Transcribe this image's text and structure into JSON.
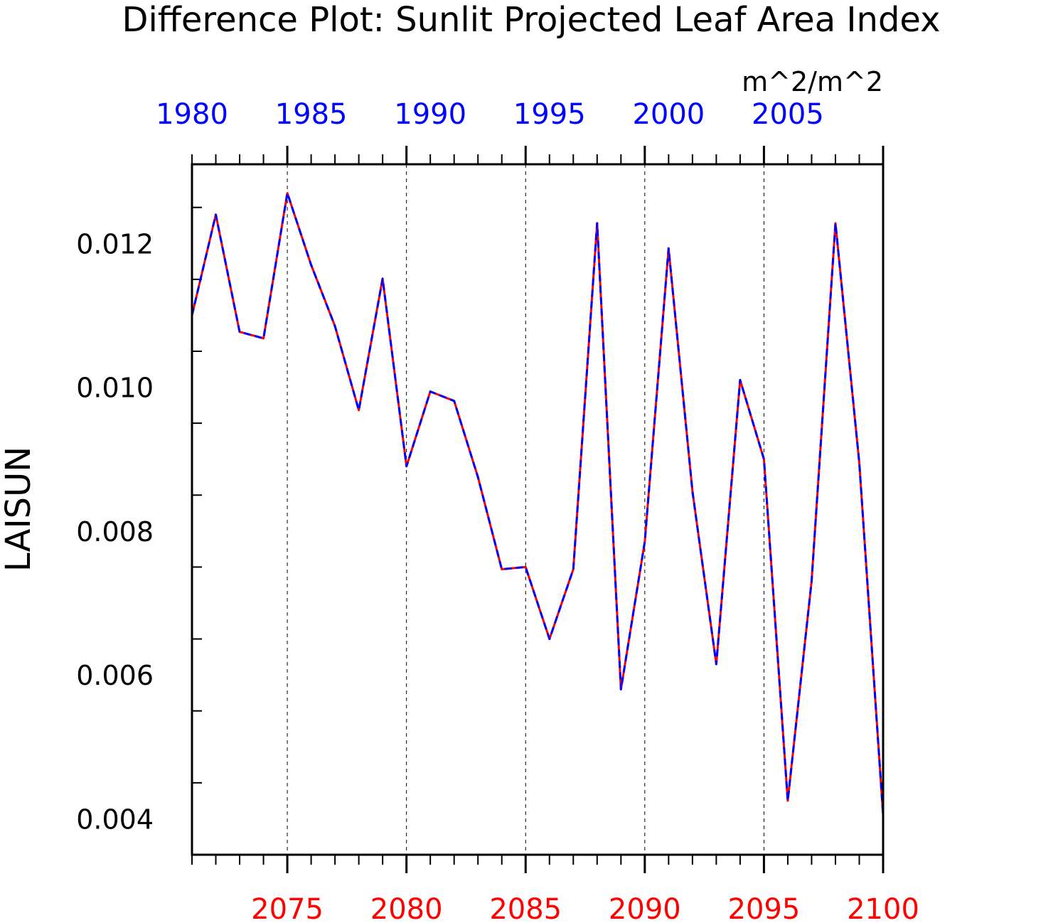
{
  "chart_data": {
    "type": "line",
    "title": "Difference Plot: Sunlit Projected Leaf Area Index",
    "units": "m^2/m^2",
    "ylabel": "LAISUN",
    "ylim": [
      0.0035,
      0.0131
    ],
    "yticks": [
      "0.004",
      "0.006",
      "0.008",
      "0.010",
      "0.012"
    ],
    "ytick_values": [
      0.004,
      0.006,
      0.008,
      0.01,
      0.012
    ],
    "grid": "vertical dashed lines at labeled x ticks",
    "x_bottom": {
      "label": "",
      "color": "#ff0000",
      "range": [
        2071,
        2100
      ],
      "ticks": [
        "2075",
        "2080",
        "2085",
        "2090",
        "2095",
        "2100"
      ],
      "tick_values": [
        2075,
        2080,
        2085,
        2090,
        2095,
        2100
      ]
    },
    "x_top": {
      "label": "",
      "color": "#0000ff",
      "ticks": [
        "1980",
        "1985",
        "1990",
        "1995",
        "2000",
        "2005"
      ],
      "tick_values": [
        1980,
        1985,
        1990,
        1995,
        2000,
        2005
      ]
    },
    "series": [
      {
        "color": "#ff0000",
        "style": "solid",
        "x": [
          2071,
          2072,
          2073,
          2074,
          2075,
          2076,
          2077,
          2078,
          2079,
          2080,
          2081,
          2082,
          2083,
          2084,
          2085,
          2086,
          2087,
          2088,
          2089,
          2090,
          2091,
          2092,
          2093,
          2094,
          2095,
          2096,
          2097,
          2098,
          2099,
          2100
        ],
        "values": [
          0.011,
          0.0124,
          0.01077,
          0.01068,
          0.0127,
          0.0117,
          0.01085,
          0.00968,
          0.01151,
          0.0089,
          0.00994,
          0.00981,
          0.00875,
          0.00747,
          0.0075,
          0.0065,
          0.00747,
          0.01228,
          0.0058,
          0.00785,
          0.01193,
          0.00855,
          0.00615,
          0.0101,
          0.009,
          0.00425,
          0.0073,
          0.01228,
          0.00895,
          0.00405
        ]
      },
      {
        "color": "#0000ff",
        "style": "dashed",
        "x": [
          1980,
          1981,
          1982,
          1983,
          1984,
          1985,
          1986,
          1987,
          1988,
          1989,
          1990,
          1991,
          1992,
          1993,
          1994,
          1995,
          1996,
          1997,
          1998,
          1999,
          2000,
          2001,
          2002,
          2003,
          2004,
          2005,
          2006,
          2007,
          2008,
          2009
        ],
        "values": [
          0.011,
          0.0124,
          0.01077,
          0.01068,
          0.0127,
          0.0117,
          0.01085,
          0.00968,
          0.01151,
          0.0089,
          0.00994,
          0.00981,
          0.00875,
          0.00747,
          0.0075,
          0.0065,
          0.00747,
          0.01228,
          0.0058,
          0.00785,
          0.01193,
          0.00855,
          0.00615,
          0.0101,
          0.009,
          0.00425,
          0.0073,
          0.01228,
          0.00895,
          0.00405
        ]
      }
    ]
  }
}
